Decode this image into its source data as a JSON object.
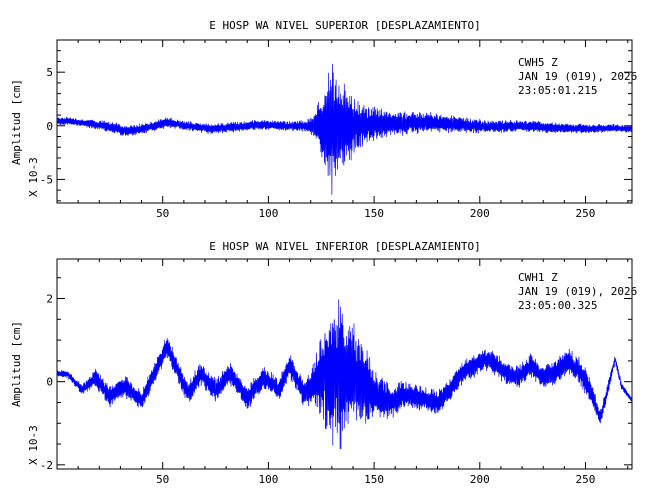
{
  "chart_data": [
    {
      "type": "line",
      "title": "E HOSP WA NIVEL SUPERIOR [DESPLAZAMIENTO]",
      "ylabel": "Amplitud [cm]",
      "yscale_note": "X 10-3",
      "station": "CWH5  Z",
      "date": "JAN 19 (019), 2026",
      "time": "23:05:01.215",
      "xlim": [
        0,
        272
      ],
      "ylim": [
        -7.2,
        8.0
      ],
      "xticks": [
        50,
        100,
        150,
        200,
        250
      ],
      "yticks": [
        -5,
        0,
        5
      ],
      "grid": false,
      "series": [
        {
          "color": "#0000ff",
          "envelope": [
            [
              0,
              0.4
            ],
            [
              10,
              0.4
            ],
            [
              20,
              0.5
            ],
            [
              30,
              0.6
            ],
            [
              40,
              0.5
            ],
            [
              50,
              0.6
            ],
            [
              60,
              0.5
            ],
            [
              70,
              0.5
            ],
            [
              80,
              0.5
            ],
            [
              90,
              0.5
            ],
            [
              100,
              0.5
            ],
            [
              110,
              0.5
            ],
            [
              118,
              0.6
            ],
            [
              122,
              1.2
            ],
            [
              124,
              2.6
            ],
            [
              126,
              3.6
            ],
            [
              128,
              5.0
            ],
            [
              130,
              6.8
            ],
            [
              132,
              6.0
            ],
            [
              134,
              4.8
            ],
            [
              136,
              4.2
            ],
            [
              138,
              3.8
            ],
            [
              140,
              3.0
            ],
            [
              145,
              2.0
            ],
            [
              150,
              1.8
            ],
            [
              155,
              1.5
            ],
            [
              160,
              1.3
            ],
            [
              170,
              1.1
            ],
            [
              180,
              1.0
            ],
            [
              190,
              0.8
            ],
            [
              200,
              0.7
            ],
            [
              210,
              0.6
            ],
            [
              220,
              0.6
            ],
            [
              230,
              0.6
            ],
            [
              240,
              0.5
            ],
            [
              250,
              0.5
            ],
            [
              260,
              0.4
            ],
            [
              272,
              0.4
            ]
          ],
          "trend": [
            [
              0,
              0.4
            ],
            [
              5,
              0.45
            ],
            [
              15,
              0.2
            ],
            [
              25,
              -0.1
            ],
            [
              33,
              -0.5
            ],
            [
              42,
              -0.2
            ],
            [
              52,
              0.3
            ],
            [
              62,
              0.0
            ],
            [
              72,
              -0.3
            ],
            [
              85,
              -0.1
            ],
            [
              95,
              0.1
            ],
            [
              110,
              0.0
            ],
            [
              120,
              0.0
            ],
            [
              140,
              0.0
            ],
            [
              160,
              0.2
            ],
            [
              175,
              0.3
            ],
            [
              190,
              0.1
            ],
            [
              205,
              -0.1
            ],
            [
              220,
              0.0
            ],
            [
              235,
              -0.2
            ],
            [
              250,
              -0.3
            ],
            [
              262,
              -0.2
            ],
            [
              272,
              -0.3
            ]
          ]
        }
      ]
    },
    {
      "type": "line",
      "title": "E HOSP WA NIVEL INFERIOR [DESPLAZAMIENTO]",
      "ylabel": "Amplitud [cm]",
      "yscale_note": "X 10-3",
      "station": "CWH1  Z",
      "date": "JAN 19 (019), 2026",
      "time": "23:05:00.325",
      "xlim": [
        0,
        272
      ],
      "ylim": [
        -2.1,
        2.95
      ],
      "xticks": [
        50,
        100,
        150,
        200,
        250
      ],
      "yticks": [
        -2,
        0,
        2
      ],
      "grid": false,
      "series": [
        {
          "color": "#0000ff",
          "envelope": [
            [
              0,
              0.08
            ],
            [
              10,
              0.12
            ],
            [
              20,
              0.25
            ],
            [
              30,
              0.3
            ],
            [
              40,
              0.25
            ],
            [
              50,
              0.3
            ],
            [
              60,
              0.3
            ],
            [
              70,
              0.3
            ],
            [
              80,
              0.3
            ],
            [
              90,
              0.3
            ],
            [
              100,
              0.3
            ],
            [
              110,
              0.3
            ],
            [
              118,
              0.35
            ],
            [
              122,
              0.7
            ],
            [
              126,
              1.2
            ],
            [
              128,
              1.5
            ],
            [
              130,
              1.9
            ],
            [
              132,
              1.8
            ],
            [
              134,
              2.0
            ],
            [
              136,
              1.6
            ],
            [
              138,
              1.4
            ],
            [
              142,
              1.2
            ],
            [
              146,
              1.0
            ],
            [
              150,
              0.6
            ],
            [
              160,
              0.4
            ],
            [
              170,
              0.35
            ],
            [
              180,
              0.3
            ],
            [
              190,
              0.3
            ],
            [
              200,
              0.3
            ],
            [
              210,
              0.3
            ],
            [
              220,
              0.3
            ],
            [
              230,
              0.3
            ],
            [
              240,
              0.35
            ],
            [
              250,
              0.35
            ],
            [
              255,
              0.25
            ],
            [
              262,
              0.15
            ],
            [
              272,
              0.05
            ]
          ],
          "trend": [
            [
              0,
              0.2
            ],
            [
              5,
              0.18
            ],
            [
              12,
              -0.2
            ],
            [
              18,
              0.1
            ],
            [
              25,
              -0.35
            ],
            [
              32,
              -0.1
            ],
            [
              40,
              -0.45
            ],
            [
              47,
              0.3
            ],
            [
              52,
              0.85
            ],
            [
              56,
              0.4
            ],
            [
              62,
              -0.3
            ],
            [
              68,
              0.2
            ],
            [
              75,
              -0.2
            ],
            [
              82,
              0.2
            ],
            [
              90,
              -0.4
            ],
            [
              98,
              0.1
            ],
            [
              105,
              -0.2
            ],
            [
              110,
              0.4
            ],
            [
              117,
              -0.3
            ],
            [
              124,
              0.1
            ],
            [
              130,
              0.3
            ],
            [
              136,
              0.1
            ],
            [
              142,
              0.2
            ],
            [
              150,
              -0.3
            ],
            [
              158,
              -0.5
            ],
            [
              165,
              -0.3
            ],
            [
              172,
              -0.4
            ],
            [
              180,
              -0.5
            ],
            [
              186,
              -0.2
            ],
            [
              192,
              0.25
            ],
            [
              198,
              0.4
            ],
            [
              204,
              0.55
            ],
            [
              210,
              0.3
            ],
            [
              218,
              0.1
            ],
            [
              224,
              0.4
            ],
            [
              230,
              0.1
            ],
            [
              236,
              0.25
            ],
            [
              242,
              0.5
            ],
            [
              248,
              0.2
            ],
            [
              253,
              -0.3
            ],
            [
              257,
              -0.9
            ],
            [
              261,
              -0.1
            ],
            [
              264,
              0.55
            ],
            [
              267,
              -0.1
            ],
            [
              272,
              -0.45
            ]
          ]
        }
      ]
    }
  ]
}
